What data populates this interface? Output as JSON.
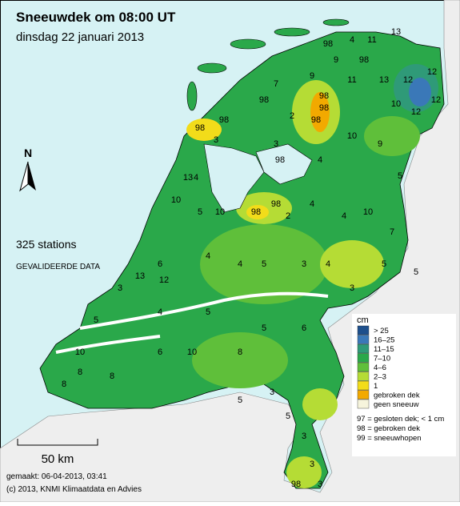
{
  "title": "Sneeuwdek om 08:00 UT",
  "subtitle": "dinsdag 22 januari 2013",
  "north": "N",
  "station_count": "325 stations",
  "validated": "GEVALIDEERDE DATA",
  "scale_bar": "50 km",
  "made": "gemaakt: 06-04-2013, 03:41",
  "copyright": "(c) 2013, KNMI Klimaatdata en Advies",
  "legend": {
    "unit": "cm",
    "items": [
      {
        "label": "> 25",
        "color": "#1d4f8c"
      },
      {
        "label": "16–25",
        "color": "#3a78b8"
      },
      {
        "label": "11–15",
        "color": "#2f9a78"
      },
      {
        "label": "7–10",
        "color": "#2aa84a"
      },
      {
        "label": "4–6",
        "color": "#5fbf3a"
      },
      {
        "label": "2–3",
        "color": "#b5dc35"
      },
      {
        "label": "1",
        "color": "#f2dc1a"
      },
      {
        "label": "gebroken dek",
        "color": "#f2a900"
      },
      {
        "label": "geen sneeuw",
        "color": "#f6f4dc"
      }
    ]
  },
  "codes": [
    "97 = gesloten dek; < 1 cm",
    "98 = gebroken dek",
    "99 = sneeuwhopen"
  ],
  "stations": [
    98,
    4,
    11,
    13,
    98,
    9,
    9,
    11,
    13,
    12,
    12,
    12,
    12,
    10,
    98,
    98,
    98,
    2,
    98,
    7,
    98,
    98,
    3,
    4,
    13,
    10,
    5,
    10,
    98,
    98,
    2,
    4,
    4,
    10,
    7,
    5,
    3,
    4,
    3,
    5,
    4,
    4,
    6,
    13,
    12,
    3,
    5,
    10,
    8,
    8,
    8,
    6,
    10,
    8,
    3,
    5,
    5,
    3,
    3,
    98,
    3,
    4,
    5,
    5,
    6,
    5,
    9,
    10,
    5,
    4,
    98,
    3
  ]
}
